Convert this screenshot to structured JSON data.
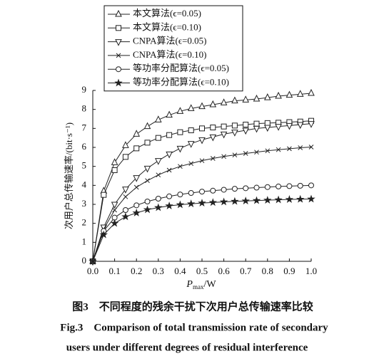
{
  "chart_data": {
    "type": "line",
    "xlabel": {
      "symbol": "P",
      "subscript": "max",
      "unit": "/W"
    },
    "ylabel": "次用户总传输速率/(bit·s⁻¹)",
    "x": [
      0,
      0.05,
      0.1,
      0.15,
      0.2,
      0.25,
      0.3,
      0.35,
      0.4,
      0.45,
      0.5,
      0.55,
      0.6,
      0.65,
      0.7,
      0.75,
      0.8,
      0.85,
      0.9,
      0.95,
      1.0
    ],
    "xlim": [
      0,
      1
    ],
    "ylim": [
      0,
      9
    ],
    "xticks": [
      {
        "value": 0,
        "label": "0.0"
      },
      0.1,
      0.2,
      0.3,
      0.4,
      0.5,
      0.6,
      0.7,
      0.8,
      0.9,
      {
        "value": 1,
        "label": "1.0"
      }
    ],
    "yticks": [
      0,
      1,
      2,
      3,
      4,
      5,
      6,
      7,
      8,
      9
    ],
    "legend": "top-left",
    "series": [
      {
        "name": "本文算法(ϵ=0.05)",
        "color": "#222",
        "marker": "triangle-up",
        "values": [
          0,
          3.7,
          5.2,
          6.1,
          6.7,
          7.1,
          7.45,
          7.7,
          7.9,
          8.05,
          8.15,
          8.25,
          8.35,
          8.45,
          8.5,
          8.55,
          8.62,
          8.7,
          8.75,
          8.8,
          8.85
        ]
      },
      {
        "name": "本文算法(ϵ=0.10)",
        "color": "#222",
        "marker": "square",
        "values": [
          0,
          3.5,
          4.8,
          5.5,
          5.95,
          6.25,
          6.5,
          6.65,
          6.8,
          6.9,
          7.0,
          7.05,
          7.1,
          7.15,
          7.2,
          7.25,
          7.28,
          7.3,
          7.33,
          7.36,
          7.4
        ]
      },
      {
        "name": "CNPA算法(ϵ=0.05)",
        "color": "#222",
        "marker": "triangle-down",
        "values": [
          0,
          1.8,
          3.0,
          3.8,
          4.4,
          4.9,
          5.3,
          5.65,
          5.95,
          6.2,
          6.4,
          6.55,
          6.7,
          6.8,
          6.9,
          7.0,
          7.05,
          7.1,
          7.15,
          7.2,
          7.25
        ]
      },
      {
        "name": "CNPA算法(ϵ=0.10)",
        "color": "#222",
        "marker": "x",
        "values": [
          0,
          1.7,
          2.7,
          3.4,
          3.9,
          4.25,
          4.55,
          4.8,
          5.0,
          5.15,
          5.3,
          5.42,
          5.52,
          5.6,
          5.68,
          5.75,
          5.82,
          5.88,
          5.93,
          5.98,
          6.02
        ]
      },
      {
        "name": "等功率分配算法(ϵ=0.05)",
        "color": "#222",
        "marker": "circle",
        "values": [
          0,
          1.6,
          2.3,
          2.7,
          2.95,
          3.15,
          3.3,
          3.42,
          3.52,
          3.6,
          3.67,
          3.72,
          3.77,
          3.82,
          3.85,
          3.88,
          3.91,
          3.94,
          3.96,
          3.98,
          4.0
        ]
      },
      {
        "name": "等功率分配算法(ϵ=0.10)",
        "color": "#222",
        "marker": "star",
        "values": [
          0,
          1.4,
          2.0,
          2.35,
          2.55,
          2.72,
          2.83,
          2.92,
          2.98,
          3.03,
          3.07,
          3.1,
          3.13,
          3.16,
          3.18,
          3.2,
          3.22,
          3.24,
          3.26,
          3.27,
          3.28
        ]
      }
    ]
  },
  "caption": [
    "图3　不同程度的残余干扰下次用户总传输速率比较",
    "Fig.3　Comparison of total transmission rate of secondary",
    "users under different degrees of residual interference"
  ]
}
